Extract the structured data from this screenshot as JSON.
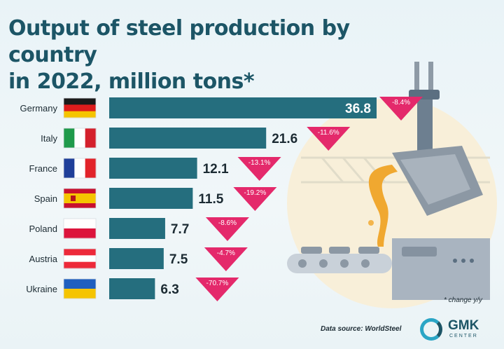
{
  "title_line1": "Output of steel production by country",
  "title_line2": "in 2022, million tons*",
  "note": "* change y/y",
  "source": "Data source: WorldSteel",
  "logo": {
    "name": "GMK",
    "sub": "CENTER"
  },
  "colors": {
    "bar": "#256e7e",
    "change_badge": "#e4296b",
    "title": "#1c5566",
    "accent": "#2aa5c5"
  },
  "chart_data": {
    "type": "bar",
    "orientation": "horizontal",
    "categories": [
      "Germany",
      "Italy",
      "France",
      "Spain",
      "Poland",
      "Austria",
      "Ukraine"
    ],
    "values": [
      36.8,
      21.6,
      12.1,
      11.5,
      7.7,
      7.5,
      6.3
    ],
    "value_labels": [
      "36.8",
      "21.6",
      "12.1",
      "11.5",
      "7.7",
      "7.5",
      "6.3"
    ],
    "change_labels": [
      "-8.4%",
      "-11.6%",
      "-13.1%",
      "-19.2%",
      "-8.6%",
      "-4.7%",
      "-70.7%"
    ],
    "change_values": [
      -8.4,
      -11.6,
      -13.1,
      -19.2,
      -8.6,
      -4.7,
      -70.7
    ],
    "flags": [
      "germany-flag-icon",
      "italy-flag-icon",
      "france-flag-icon",
      "spain-flag-icon",
      "poland-flag-icon",
      "austria-flag-icon",
      "ukraine-flag-icon"
    ],
    "title": "Output of steel production by country in 2022, million tons*",
    "xlabel": "",
    "ylabel": "",
    "xlim": [
      0,
      36.8
    ],
    "grid": false,
    "legend": "none"
  }
}
